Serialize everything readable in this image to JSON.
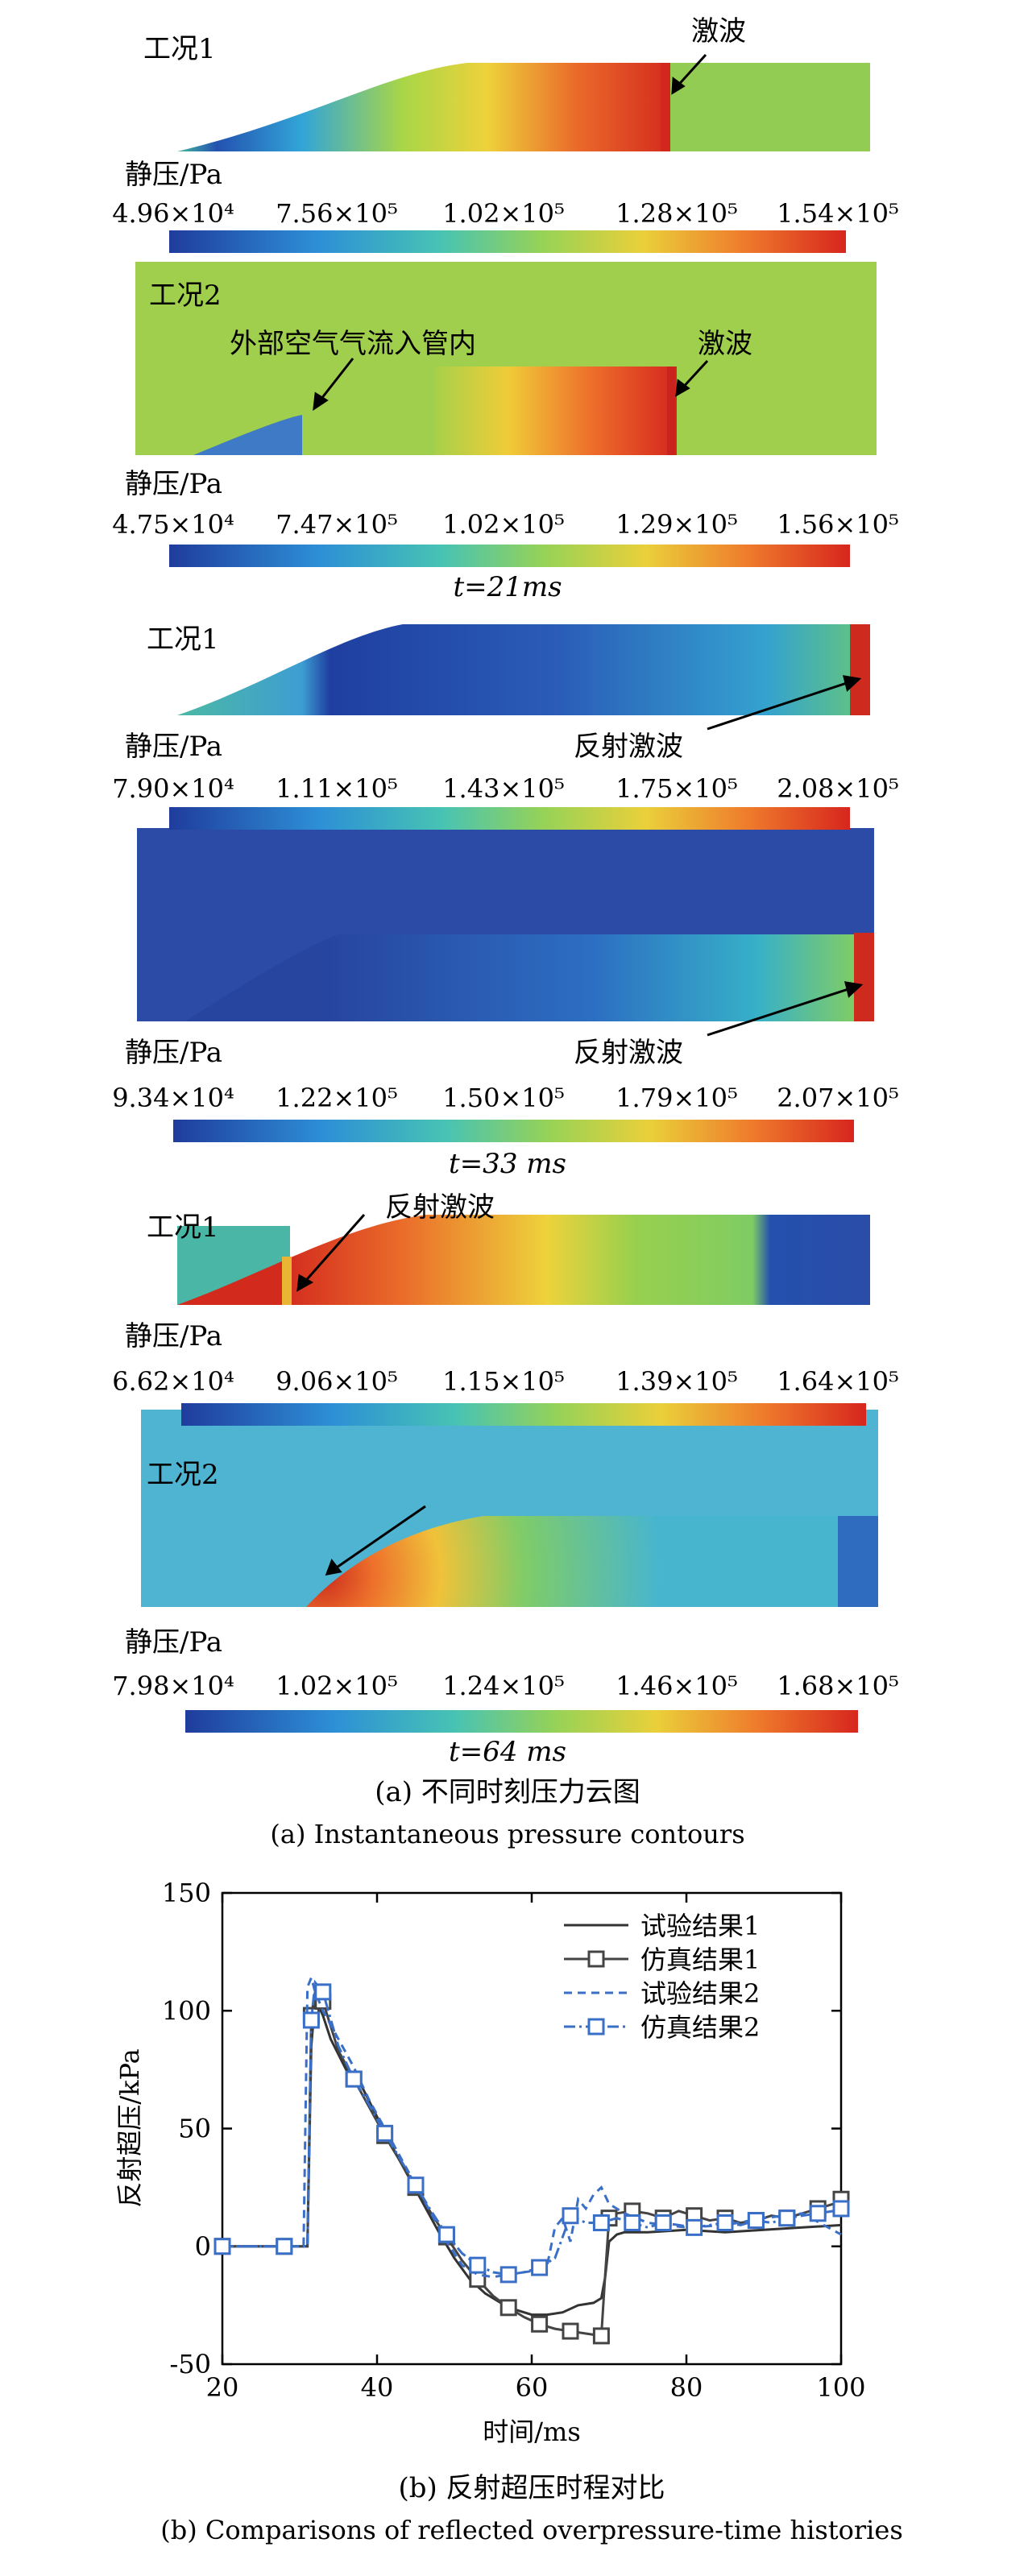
{
  "part_a": {
    "panels": [
      {
        "label": "工况1",
        "annotations": [
          "激波"
        ],
        "unit_label": "静压/Pa",
        "scale_ticks": [
          "4.96×10⁴",
          "7.56×10⁵",
          "1.02×10⁵",
          "1.28×10⁵",
          "1.54×10⁵"
        ]
      },
      {
        "label": "工况2",
        "annotations": [
          "外部空气气流入管内",
          "激波"
        ],
        "unit_label": "静压/Pa",
        "scale_ticks": [
          "4.75×10⁴",
          "7.47×10⁵",
          "1.02×10⁵",
          "1.29×10⁵",
          "1.56×10⁵"
        ],
        "time_label": "t=21ms"
      },
      {
        "label": "工况1",
        "annotations": [
          "反射激波"
        ],
        "unit_label": "静压/Pa",
        "scale_ticks": [
          "7.90×10⁴",
          "1.11×10⁵",
          "1.43×10⁵",
          "1.75×10⁵",
          "2.08×10⁵"
        ]
      },
      {
        "label": "",
        "annotations": [
          "反射激波"
        ],
        "unit_label": "静压/Pa",
        "scale_ticks": [
          "9.34×10⁴",
          "1.22×10⁵",
          "1.50×10⁵",
          "1.79×10⁵",
          "2.07×10⁵"
        ],
        "time_label": "t=33 ms"
      },
      {
        "label": "工况1",
        "annotations": [
          "反射激波"
        ],
        "unit_label": "静压/Pa",
        "scale_ticks": [
          "6.62×10⁴",
          "9.06×10⁵",
          "1.15×10⁵",
          "1.39×10⁵",
          "1.64×10⁵"
        ]
      },
      {
        "label": "工况2",
        "annotations": [],
        "unit_label": "静压/Pa",
        "scale_ticks": [
          "7.98×10⁴",
          "1.02×10⁵",
          "1.24×10⁵",
          "1.46×10⁵",
          "1.68×10⁵"
        ],
        "time_label": "t=64 ms"
      }
    ],
    "caption_cn": "(a) 不同时刻压力云图",
    "caption_en": "(a) Instantaneous pressure contours"
  },
  "chart_data": {
    "type": "line",
    "title": "",
    "xlabel": "时间/ms",
    "ylabel": "反射超压/kPa",
    "xlim": [
      20,
      100
    ],
    "ylim": [
      -50,
      150
    ],
    "xticks": [
      20,
      40,
      60,
      80,
      100
    ],
    "yticks": [
      -50,
      0,
      50,
      100,
      150
    ],
    "legend_position": "top-right",
    "series": [
      {
        "name": "试验结果1",
        "color": "#333333",
        "style": "solid",
        "marker": "none",
        "x": [
          20,
          31,
          31.5,
          32,
          33,
          34,
          36,
          38,
          40,
          42,
          44,
          46,
          48,
          50,
          52,
          54,
          56,
          58,
          60,
          62,
          64,
          66,
          68,
          69,
          69.5,
          70,
          71,
          72,
          75,
          80,
          85,
          90,
          95,
          100
        ],
        "y": [
          0,
          0,
          85,
          105,
          98,
          88,
          75,
          68,
          55,
          42,
          30,
          18,
          6,
          -5,
          -14,
          -20,
          -24,
          -27,
          -29,
          -29,
          -28,
          -25,
          -24,
          -22,
          -13,
          2,
          5,
          6,
          6,
          7,
          6,
          7,
          8,
          9
        ]
      },
      {
        "name": "仿真结果1",
        "color": "#444444",
        "style": "solid",
        "marker": "square",
        "x": [
          20,
          24,
          28,
          31,
          31.5,
          32,
          33,
          35,
          37,
          39,
          41,
          43,
          45,
          47,
          49,
          51,
          53,
          55,
          57,
          59,
          61,
          63,
          65,
          67,
          69,
          69.5,
          70,
          71,
          73,
          75,
          77,
          79,
          81,
          83,
          85,
          87,
          89,
          91,
          93,
          95,
          97,
          99,
          100
        ],
        "y": [
          0,
          0,
          0,
          0,
          98,
          108,
          104,
          83,
          71,
          59,
          47,
          36,
          25,
          14,
          4,
          -6,
          -14,
          -21,
          -26,
          -30,
          -33,
          -35,
          -36,
          -37,
          -38,
          -12,
          12,
          14,
          15,
          14,
          12,
          15,
          13,
          11,
          12,
          10,
          11,
          13,
          12,
          14,
          16,
          18,
          20
        ]
      },
      {
        "name": "试验结果2",
        "color": "#3a6fc7",
        "style": "dashed",
        "marker": "none",
        "x": [
          20,
          30.5,
          31,
          31.5,
          32,
          33,
          35,
          37,
          39,
          41,
          43,
          45,
          47,
          49,
          51,
          53,
          55,
          57,
          59,
          61,
          62,
          63,
          64,
          65,
          66,
          67,
          68,
          69,
          70,
          72,
          75,
          80,
          85,
          90,
          95,
          100
        ],
        "y": [
          0,
          0,
          110,
          114,
          108,
          100,
          88,
          76,
          62,
          50,
          38,
          26,
          14,
          2,
          -8,
          -12,
          -13,
          -12,
          -11,
          -10,
          -8,
          8,
          12,
          2,
          20,
          16,
          22,
          25,
          18,
          14,
          10,
          8,
          9,
          12,
          14,
          5
        ]
      },
      {
        "name": "仿真结果2",
        "color": "#3a6fc7",
        "style": "dashdot",
        "marker": "square",
        "x": [
          20,
          24,
          28,
          31,
          31.5,
          32,
          33,
          35,
          37,
          39,
          41,
          43,
          45,
          47,
          49,
          51,
          53,
          55,
          57,
          59,
          61,
          63,
          65,
          67,
          69,
          71,
          73,
          75,
          77,
          79,
          81,
          83,
          85,
          87,
          89,
          91,
          93,
          95,
          97,
          99,
          100
        ],
        "y": [
          0,
          0,
          0,
          0,
          96,
          112,
          108,
          85,
          71,
          60,
          48,
          37,
          26,
          15,
          5,
          -3,
          -8,
          -11,
          -12,
          -11,
          -9,
          -5,
          13,
          10,
          10,
          12,
          10,
          8,
          10,
          9,
          8,
          9,
          10,
          9,
          11,
          10,
          12,
          13,
          14,
          15,
          16
        ]
      }
    ]
  },
  "part_b": {
    "caption_cn": "(b) 反射超压时程对比",
    "caption_en": "(b) Comparisons of reflected overpressure-time histories"
  }
}
